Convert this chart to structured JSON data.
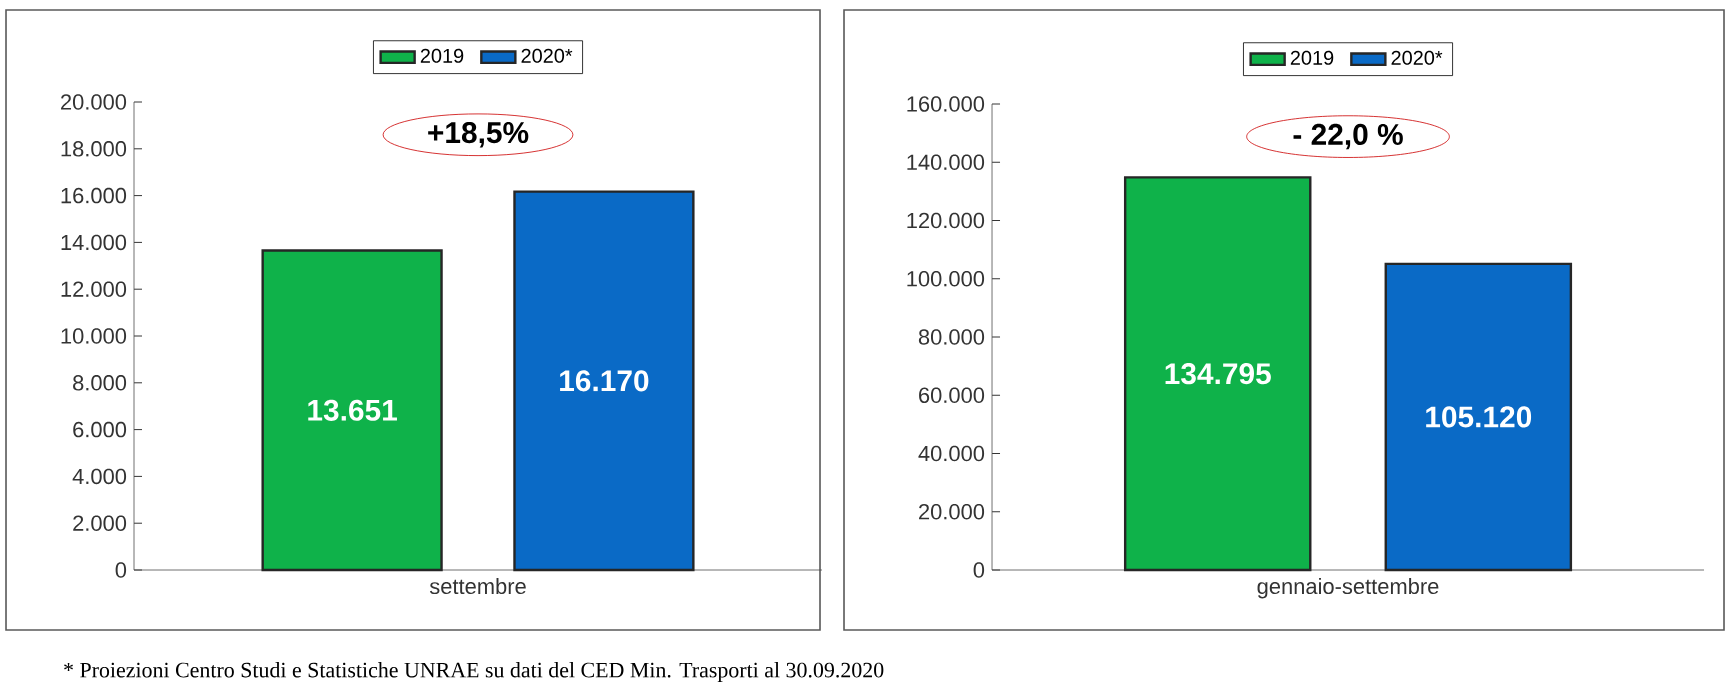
{
  "chart_data": [
    {
      "type": "bar",
      "categories": [
        "settembre"
      ],
      "series": [
        {
          "name": "2019",
          "color": "#0fb24a",
          "values": [
            13651
          ],
          "value_labels": [
            "13.651"
          ]
        },
        {
          "name": "2020*",
          "color": "#0a6ac6",
          "values": [
            16170
          ],
          "value_labels": [
            "16.170"
          ]
        }
      ],
      "ylim": [
        0,
        20000
      ],
      "yticks": [
        0,
        {
          "value": 2000,
          "label": "2.000"
        },
        {
          "value": 4000,
          "label": "4.000"
        },
        {
          "value": 6000,
          "label": "6.000"
        },
        {
          "value": 8000,
          "label": "8.000"
        },
        {
          "value": 10000,
          "label": "10.000"
        },
        {
          "value": 12000,
          "label": "12.000"
        },
        {
          "value": 14000,
          "label": "14.000"
        },
        {
          "value": 16000,
          "label": "16.000"
        },
        {
          "value": 18000,
          "label": "18.000"
        },
        {
          "value": 20000,
          "label": "20.000"
        }
      ],
      "legend": "top",
      "annotations": [
        "+18,5%",
        "* Proiezioni Centro Studi e Statistiche UNRAE su dati del CED Min. Trasporti al 30.09.2020"
      ]
    },
    {
      "type": "bar",
      "categories": [
        "gennaio-settembre"
      ],
      "series": [
        {
          "name": "2019",
          "color": "#0fb24a",
          "values": [
            134795
          ],
          "value_labels": [
            "134.795"
          ]
        },
        {
          "name": "2020*",
          "color": "#0a6ac6",
          "values": [
            105120
          ],
          "value_labels": [
            "105.120"
          ]
        }
      ],
      "ylim": [
        0,
        160000
      ],
      "yticks": [
        0,
        {
          "value": 20000,
          "label": "20.000"
        },
        {
          "value": 40000,
          "label": "40.000"
        },
        {
          "value": 60000,
          "label": "60.000"
        },
        {
          "value": 80000,
          "label": "80.000"
        },
        {
          "value": 100000,
          "label": "100.000"
        },
        {
          "value": 120000,
          "label": "120.000"
        },
        {
          "value": 140000,
          "label": "140.000"
        },
        {
          "value": 160000,
          "label": "160.000"
        }
      ],
      "legend": "top",
      "annotations": [
        "- 22,0 %"
      ]
    }
  ]
}
